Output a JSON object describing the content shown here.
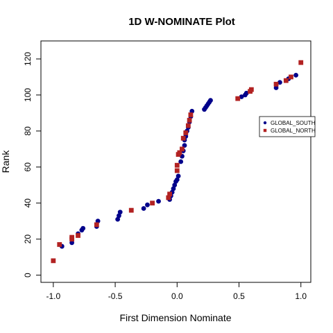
{
  "chart_data": {
    "type": "scatter",
    "title": "1D W-NOMINATE Plot",
    "xlabel": "First Dimension Nominate",
    "ylabel": "Rank",
    "xlim": [
      -1.1,
      1.08
    ],
    "ylim": [
      -4,
      130
    ],
    "x_ticks": [
      -1.0,
      -0.5,
      0.0,
      0.5,
      1.0
    ],
    "x_tick_labels": [
      "-1.0",
      "-0.5",
      "0.0",
      "0.5",
      "1.0"
    ],
    "y_ticks": [
      0,
      20,
      40,
      60,
      80,
      100,
      120
    ],
    "y_tick_labels": [
      "0",
      "20",
      "40",
      "60",
      "80",
      "100",
      "120"
    ],
    "grid": false,
    "legend_position": "right",
    "series": [
      {
        "name": "GLOBAL_SOUTH",
        "color": "#00008B",
        "marker": "circle",
        "points": [
          [
            -0.93,
            16
          ],
          [
            -0.85,
            18
          ],
          [
            -0.8,
            23
          ],
          [
            -0.77,
            25
          ],
          [
            -0.76,
            26
          ],
          [
            -0.65,
            27
          ],
          [
            -0.64,
            30
          ],
          [
            -0.48,
            31
          ],
          [
            -0.47,
            33
          ],
          [
            -0.46,
            35
          ],
          [
            -0.27,
            37
          ],
          [
            -0.24,
            39
          ],
          [
            -0.15,
            41
          ],
          [
            -0.06,
            42
          ],
          [
            -0.05,
            44
          ],
          [
            -0.04,
            46
          ],
          [
            -0.03,
            48
          ],
          [
            -0.02,
            50
          ],
          [
            -0.01,
            52
          ],
          [
            0.0,
            53
          ],
          [
            0.01,
            55
          ],
          [
            0.03,
            63
          ],
          [
            0.04,
            66
          ],
          [
            0.05,
            69
          ],
          [
            0.06,
            72
          ],
          [
            0.06,
            75
          ],
          [
            0.07,
            77
          ],
          [
            0.08,
            80
          ],
          [
            0.09,
            82
          ],
          [
            0.1,
            85
          ],
          [
            0.11,
            88
          ],
          [
            0.12,
            91
          ],
          [
            0.22,
            92
          ],
          [
            0.23,
            93
          ],
          [
            0.24,
            94
          ],
          [
            0.25,
            95
          ],
          [
            0.26,
            96
          ],
          [
            0.27,
            97
          ],
          [
            0.52,
            99
          ],
          [
            0.55,
            100
          ],
          [
            0.56,
            101
          ],
          [
            0.8,
            104
          ],
          [
            0.83,
            107
          ],
          [
            0.9,
            109
          ],
          [
            0.96,
            111
          ]
        ]
      },
      {
        "name": "GLOBAL_NORTH",
        "color": "#B22222",
        "marker": "square",
        "points": [
          [
            -1.0,
            8
          ],
          [
            -0.95,
            17
          ],
          [
            -0.85,
            20
          ],
          [
            -0.85,
            21
          ],
          [
            -0.8,
            22
          ],
          [
            -0.65,
            28
          ],
          [
            -0.37,
            36
          ],
          [
            -0.2,
            40
          ],
          [
            -0.07,
            43
          ],
          [
            -0.06,
            45
          ],
          [
            0.0,
            58
          ],
          [
            0.0,
            61
          ],
          [
            0.01,
            67
          ],
          [
            0.02,
            68
          ],
          [
            0.04,
            70
          ],
          [
            0.05,
            76
          ],
          [
            0.07,
            79
          ],
          [
            0.09,
            83
          ],
          [
            0.1,
            86
          ],
          [
            0.11,
            89
          ],
          [
            0.49,
            98
          ],
          [
            0.59,
            102
          ],
          [
            0.6,
            103
          ],
          [
            0.8,
            106
          ],
          [
            0.88,
            108
          ],
          [
            0.92,
            110
          ],
          [
            1.0,
            118
          ]
        ]
      }
    ]
  }
}
